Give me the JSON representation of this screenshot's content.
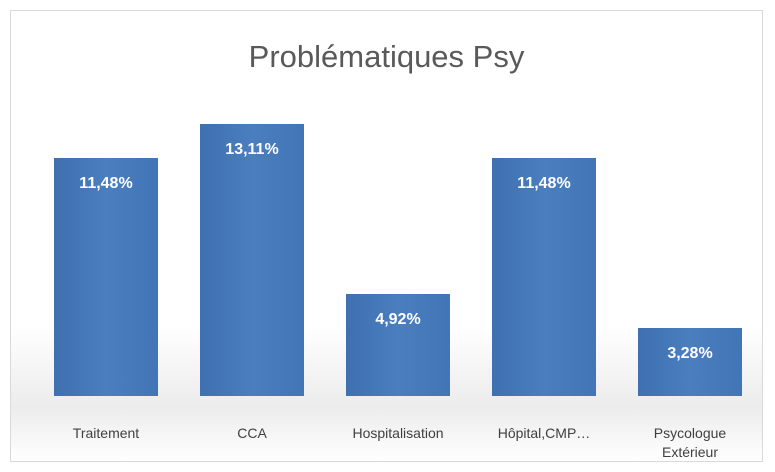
{
  "chart_data": {
    "type": "bar",
    "title": "Problématiques Psy",
    "categories": [
      "Traitement",
      "CCA",
      "Hospitalisation",
      "Hôpital,CMP…",
      "Psycologue Extérieur"
    ],
    "values": [
      11.48,
      13.11,
      4.92,
      11.48,
      3.28
    ],
    "value_labels": [
      "11,48%",
      "13,11%",
      "4,92%",
      "11,48%",
      "3,28%"
    ],
    "color": "#4a7ebf"
  }
}
